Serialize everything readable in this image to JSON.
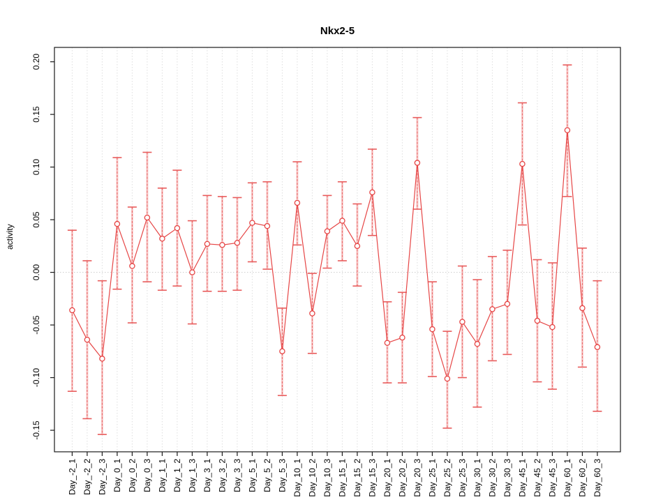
{
  "figure": {
    "title": "Nkx2-5"
  },
  "chart_data": {
    "type": "scatter",
    "title": "Nkx2-5",
    "xlabel": "",
    "ylabel": "activity",
    "ylim": [
      -0.17,
      0.215
    ],
    "ytick_labels": [
      "0.20",
      "0.15",
      "0.10",
      "0.05",
      "0.00",
      "-0.05",
      "-0.10",
      "-0.15"
    ],
    "ytick_values": [
      0.2,
      0.15,
      0.1,
      0.05,
      0.0,
      -0.05,
      -0.1,
      -0.15
    ],
    "grid": "vertical dotted gridline at every category",
    "zero_line_dotted": true,
    "legend_position": "none",
    "categories": [
      "Day_-2_1",
      "Day_-2_2",
      "Day_-2_3",
      "Day_0_1",
      "Day_0_2",
      "Day_0_3",
      "Day_1_1",
      "Day_1_2",
      "Day_1_3",
      "Day_3_1",
      "Day_3_2",
      "Day_3_3",
      "Day_5_1",
      "Day_5_2",
      "Day_5_3",
      "Day_10_1",
      "Day_10_2",
      "Day_10_3",
      "Day_15_1",
      "Day_15_2",
      "Day_15_3",
      "Day_20_1",
      "Day_20_2",
      "Day_20_3",
      "Day_25_1",
      "Day_25_2",
      "Day_25_3",
      "Day_30_1",
      "Day_30_2",
      "Day_30_3",
      "Day_45_1",
      "Day_45_2",
      "Day_45_3",
      "Day_60_1",
      "Day_60_2",
      "Day_60_3"
    ],
    "series": [
      {
        "name": "activity",
        "marker": "open-circle",
        "line": "solid",
        "values": [
          -0.036,
          -0.064,
          -0.082,
          0.046,
          0.006,
          0.052,
          0.032,
          0.042,
          0.0,
          0.027,
          0.026,
          0.028,
          0.047,
          0.044,
          -0.075,
          0.066,
          -0.039,
          0.039,
          0.049,
          0.025,
          0.076,
          -0.067,
          -0.062,
          0.104,
          -0.054,
          -0.101,
          -0.047,
          -0.068,
          -0.035,
          -0.03,
          0.103,
          -0.046,
          -0.052,
          0.135,
          -0.034,
          -0.071
        ],
        "error_low": [
          -0.113,
          -0.139,
          -0.154,
          -0.016,
          -0.048,
          -0.009,
          -0.017,
          -0.013,
          -0.049,
          -0.018,
          -0.018,
          -0.017,
          0.01,
          0.003,
          -0.117,
          0.026,
          -0.077,
          0.004,
          0.011,
          -0.013,
          0.035,
          -0.105,
          -0.105,
          0.06,
          -0.099,
          -0.148,
          -0.1,
          -0.128,
          -0.084,
          -0.078,
          0.045,
          -0.104,
          -0.111,
          0.072,
          -0.09,
          -0.132
        ],
        "error_high": [
          0.04,
          0.011,
          -0.008,
          0.109,
          0.062,
          0.114,
          0.08,
          0.097,
          0.049,
          0.073,
          0.072,
          0.071,
          0.085,
          0.086,
          -0.034,
          0.105,
          -0.001,
          0.073,
          0.086,
          0.065,
          0.117,
          -0.028,
          -0.019,
          0.147,
          -0.009,
          -0.056,
          0.006,
          -0.007,
          0.015,
          0.021,
          0.161,
          0.012,
          0.009,
          0.197,
          0.023,
          -0.008
        ]
      }
    ],
    "colors": {
      "series": "#e64545",
      "error_bar_band": "#f4a0a0",
      "error_bar_line": "#e85b5b",
      "gridline": "#dedede",
      "zero_line": "#cccccc",
      "axis": "#1a1a1a",
      "text": "#000000",
      "background": "#ffffff"
    }
  }
}
